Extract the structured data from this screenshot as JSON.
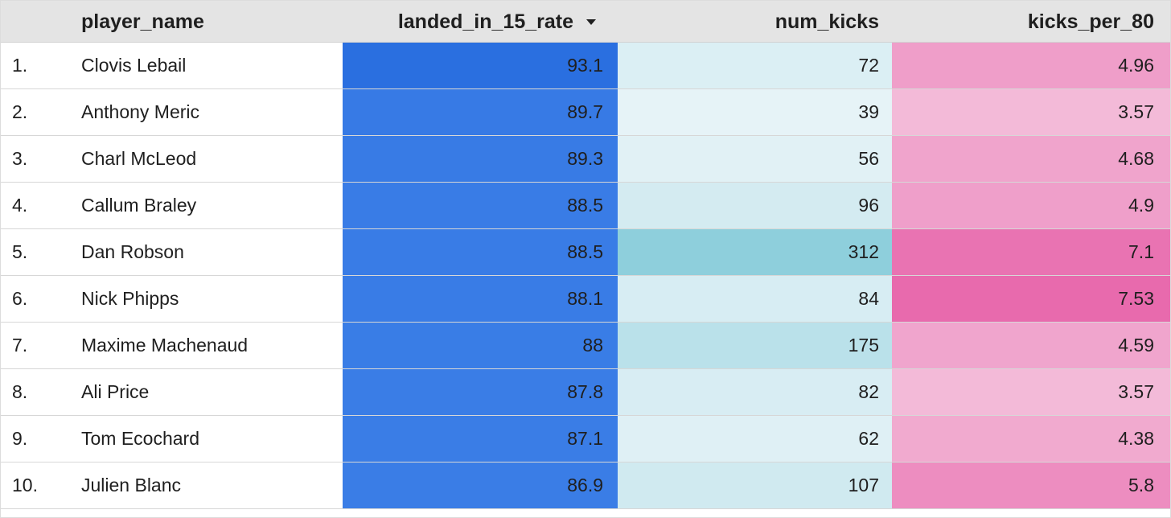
{
  "header": {
    "player_name": "player_name",
    "landed_in_15_rate": "landed_in_15_rate",
    "num_kicks": "num_kicks",
    "kicks_per_80": "kicks_per_80"
  },
  "sort": {
    "column": "landed_in_15_rate",
    "direction": "descending",
    "icon": "sort-descending-icon"
  },
  "colors": {
    "header_bg": "#e4e4e4",
    "rate_scale": [
      "#3a7de6",
      "#2a6fe0"
    ],
    "kicks_scale": [
      "#e6f3f7",
      "#8ecfdc"
    ],
    "per80_scale": [
      "#f3bad8",
      "#e86aad"
    ]
  },
  "chart_data": {
    "type": "table",
    "columns": [
      "player_name",
      "landed_in_15_rate",
      "num_kicks",
      "kicks_per_80"
    ],
    "rows": [
      {
        "rank": "1.",
        "player_name": "Clovis Lebail",
        "landed_in_15_rate": "93.1",
        "num_kicks": "72",
        "kicks_per_80": "4.96"
      },
      {
        "rank": "2.",
        "player_name": "Anthony Meric",
        "landed_in_15_rate": "89.7",
        "num_kicks": "39",
        "kicks_per_80": "3.57"
      },
      {
        "rank": "3.",
        "player_name": "Charl McLeod",
        "landed_in_15_rate": "89.3",
        "num_kicks": "56",
        "kicks_per_80": "4.68"
      },
      {
        "rank": "4.",
        "player_name": "Callum Braley",
        "landed_in_15_rate": "88.5",
        "num_kicks": "96",
        "kicks_per_80": "4.9"
      },
      {
        "rank": "5.",
        "player_name": "Dan Robson",
        "landed_in_15_rate": "88.5",
        "num_kicks": "312",
        "kicks_per_80": "7.1"
      },
      {
        "rank": "6.",
        "player_name": "Nick Phipps",
        "landed_in_15_rate": "88.1",
        "num_kicks": "84",
        "kicks_per_80": "7.53"
      },
      {
        "rank": "7.",
        "player_name": "Maxime Machenaud",
        "landed_in_15_rate": "88",
        "num_kicks": "175",
        "kicks_per_80": "4.59"
      },
      {
        "rank": "8.",
        "player_name": "Ali Price",
        "landed_in_15_rate": "87.8",
        "num_kicks": "82",
        "kicks_per_80": "3.57"
      },
      {
        "rank": "9.",
        "player_name": "Tom Ecochard",
        "landed_in_15_rate": "87.1",
        "num_kicks": "62",
        "kicks_per_80": "4.38"
      },
      {
        "rank": "10.",
        "player_name": "Julien Blanc",
        "landed_in_15_rate": "86.9",
        "num_kicks": "107",
        "kicks_per_80": "5.8"
      }
    ]
  }
}
